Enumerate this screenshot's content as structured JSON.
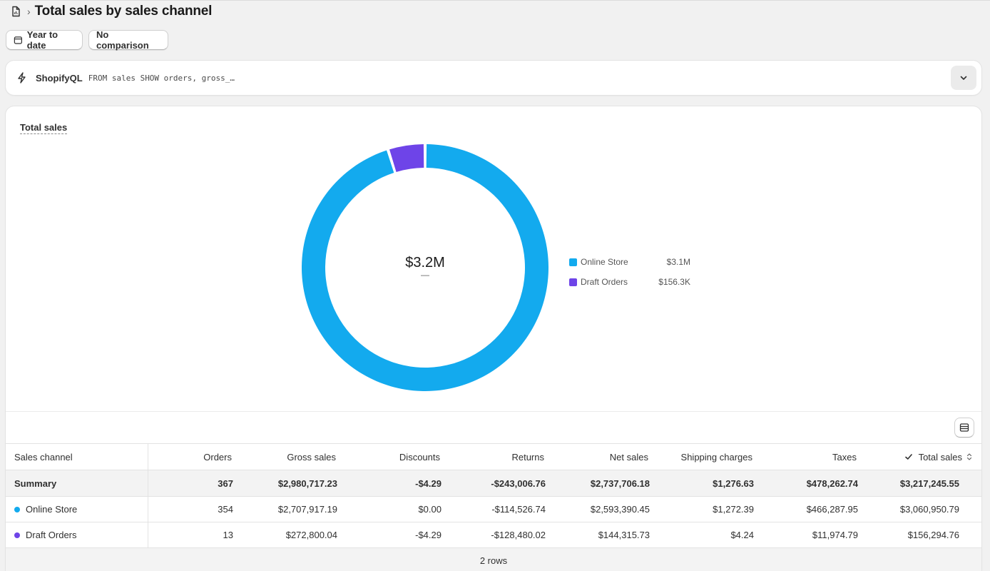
{
  "header": {
    "title": "Total sales by sales channel"
  },
  "filters": {
    "date_label": "Year to date",
    "comparison_label": "No comparison"
  },
  "query": {
    "label": "ShopifyQL",
    "code": "FROM sales SHOW orders, gross_…"
  },
  "card": {
    "title": "Total sales"
  },
  "chart_data": {
    "type": "pie",
    "donut": true,
    "center_value": "$3.2M",
    "center_sub": "—",
    "categories": [
      "Online Store",
      "Draft Orders"
    ],
    "values": [
      3060950.79,
      156294.76
    ],
    "value_labels": [
      "$3.1M",
      "$156.3K"
    ],
    "colors": [
      "#13aaee",
      "#6e44e8"
    ],
    "legend_position": "right"
  },
  "table": {
    "columns": [
      "Sales channel",
      "Orders",
      "Gross sales",
      "Discounts",
      "Returns",
      "Net sales",
      "Shipping charges",
      "Taxes",
      "Total sales"
    ],
    "summary": [
      "Summary",
      "367",
      "$2,980,717.23",
      "-$4.29",
      "-$243,006.76",
      "$2,737,706.18",
      "$1,276.63",
      "$478,262.74",
      "$3,217,245.55"
    ],
    "rows": [
      [
        "Online Store",
        "354",
        "$2,707,917.19",
        "$0.00",
        "-$114,526.74",
        "$2,593,390.45",
        "$1,272.39",
        "$466,287.95",
        "$3,060,950.79"
      ],
      [
        "Draft Orders",
        "13",
        "$272,800.04",
        "-$4.29",
        "-$128,480.02",
        "$144,315.73",
        "$4.24",
        "$11,974.79",
        "$156,294.76"
      ]
    ],
    "row_colors": [
      "#13aaee",
      "#6e44e8"
    ],
    "footer": "2 rows"
  }
}
